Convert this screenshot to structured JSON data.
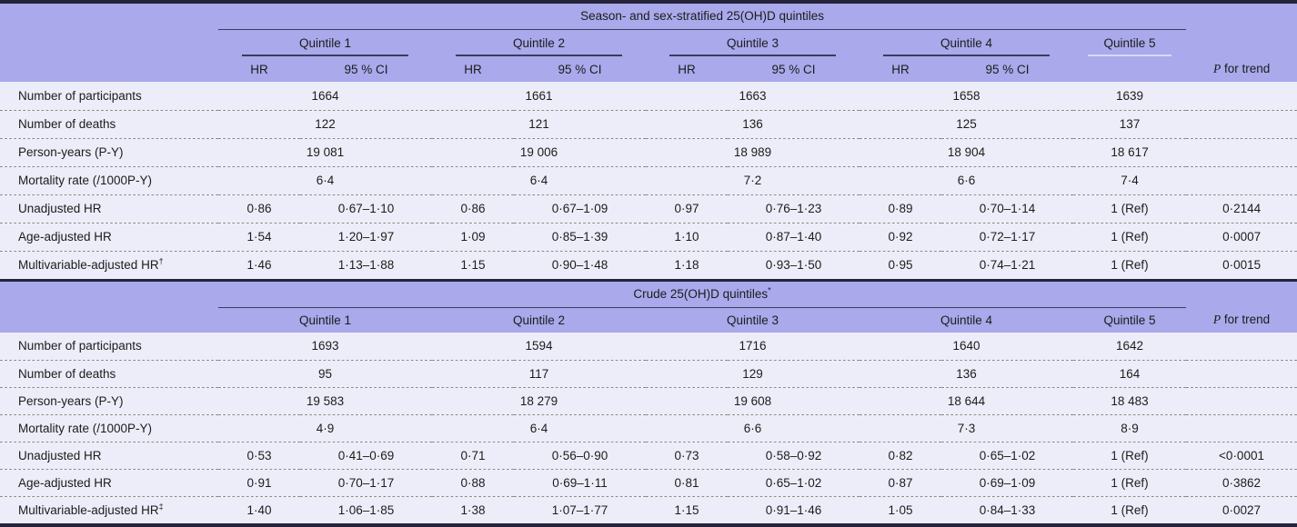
{
  "colors": {
    "header_bg": "#a9a9ec",
    "row_bg": "#ededf9",
    "dark_border": "#23233c",
    "dashed_separator": "#8d8d8d",
    "text": "#1c1c1c"
  },
  "tables": [
    {
      "title": "Season- and sex-stratified 25(OH)D quintiles",
      "title_sup": "",
      "quintiles": [
        "Quintile 1",
        "Quintile 2",
        "Quintile 3",
        "Quintile 4",
        "Quintile 5"
      ],
      "hr_header": "HR",
      "ci_header": "95 % CI",
      "p_header_italic": "P",
      "p_header_rest": " for trend",
      "count_rows": [
        {
          "label": "Number of participants",
          "values": [
            "1664",
            "1661",
            "1663",
            "1658",
            "1639"
          ]
        },
        {
          "label": "Number of deaths",
          "values": [
            "122",
            "121",
            "136",
            "125",
            "137"
          ]
        },
        {
          "label": "Person-years (P-Y)",
          "values": [
            "19 081",
            "19 006",
            "18 989",
            "18 904",
            "18 617"
          ]
        },
        {
          "label": "Mortality rate (/1000P-Y)",
          "values": [
            "6·4",
            "6·4",
            "7·2",
            "6·6",
            "7·4"
          ]
        }
      ],
      "hr_rows": [
        {
          "label": "Unadjusted HR",
          "sup": "",
          "hr": [
            "0·86",
            "0·86",
            "0·97",
            "0·89"
          ],
          "ci": [
            "0·67–1·10",
            "0·67–1·09",
            "0·76–1·23",
            "0·70–1·14"
          ],
          "q5": "1 (Ref)",
          "p": "0·2144"
        },
        {
          "label": "Age-adjusted HR",
          "sup": "",
          "hr": [
            "1·54",
            "1·09",
            "1·10",
            "0·92"
          ],
          "ci": [
            "1·20–1·97",
            "0·85–1·39",
            "0·87–1·40",
            "0·72–1·17"
          ],
          "q5": "1 (Ref)",
          "p": "0·0007"
        },
        {
          "label": "Multivariable-adjusted HR",
          "sup": "†",
          "hr": [
            "1·46",
            "1·15",
            "1·18",
            "0·95"
          ],
          "ci": [
            "1·13–1·88",
            "0·90–1·48",
            "0·93–1·50",
            "0·74–1·21"
          ],
          "q5": "1 (Ref)",
          "p": "0·0015"
        }
      ]
    },
    {
      "title": "Crude 25(OH)D quintiles",
      "title_sup": "*",
      "quintiles": [
        "Quintile 1",
        "Quintile 2",
        "Quintile 3",
        "Quintile 4",
        "Quintile 5"
      ],
      "p_header_italic": "P",
      "p_header_rest": " for trend",
      "count_rows": [
        {
          "label": "Number of participants",
          "values": [
            "1693",
            "1594",
            "1716",
            "1640",
            "1642"
          ]
        },
        {
          "label": "Number of deaths",
          "values": [
            "95",
            "117",
            "129",
            "136",
            "164"
          ]
        },
        {
          "label": "Person-years (P-Y)",
          "values": [
            "19 583",
            "18 279",
            "19 608",
            "18 644",
            "18 483"
          ]
        },
        {
          "label": "Mortality rate (/1000P-Y)",
          "values": [
            "4·9",
            "6·4",
            "6·6",
            "7·3",
            "8·9"
          ]
        }
      ],
      "hr_rows": [
        {
          "label": "Unadjusted HR",
          "sup": "",
          "hr": [
            "0·53",
            "0·71",
            "0·73",
            "0·82"
          ],
          "ci": [
            "0·41–0·69",
            "0·56–0·90",
            "0·58–0·92",
            "0·65–1·02"
          ],
          "q5": "1 (Ref)",
          "p": "<0·0001"
        },
        {
          "label": "Age-adjusted HR",
          "sup": "",
          "hr": [
            "0·91",
            "0·88",
            "0·81",
            "0·87"
          ],
          "ci": [
            "0·70–1·17",
            "0·69–1·11",
            "0·65–1·02",
            "0·69–1·09"
          ],
          "q5": "1 (Ref)",
          "p": "0·3862"
        },
        {
          "label": "Multivariable-adjusted HR",
          "sup": "‡",
          "hr": [
            "1·40",
            "1·38",
            "1·15",
            "1·05"
          ],
          "ci": [
            "1·06–1·85",
            "1·07–1·77",
            "0·91–1·46",
            "0·84–1·33"
          ],
          "q5": "1 (Ref)",
          "p": "0·0027"
        }
      ]
    }
  ]
}
